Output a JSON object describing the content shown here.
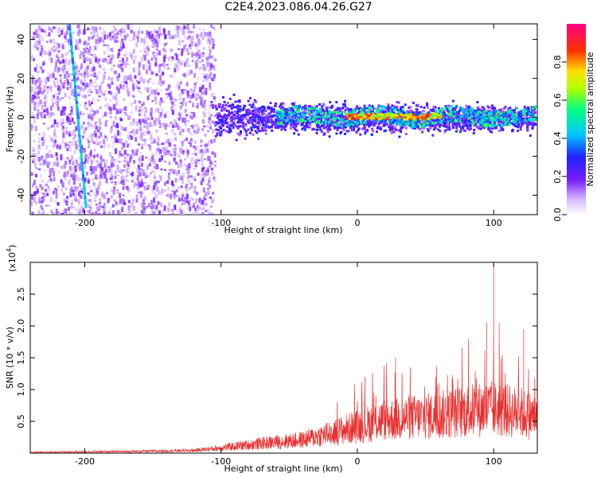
{
  "title": "C2E4.2023.086.04.26.G27",
  "chart_data": [
    {
      "type": "heatmap",
      "xlabel": "Height of straight line (km)",
      "ylabel": "Frequency (Hz)",
      "xlim": [
        -240,
        132
      ],
      "ylim": [
        -50,
        48
      ],
      "x_ticks": [
        -200,
        -100,
        0,
        100
      ],
      "y_ticks": [
        -40,
        -20,
        0,
        20,
        40
      ],
      "colorbar": {
        "label": "Normalized spectral amplitude",
        "range": [
          0.0,
          1.0
        ],
        "ticks": [
          "0.0",
          "0.2",
          "0.4",
          "0.6",
          "0.8"
        ]
      },
      "features": [
        {
          "x_range": [
            -240,
            -105
          ],
          "freq_range": [
            -50,
            48
          ],
          "amplitude": 0.15,
          "description": "broadband scatter"
        },
        {
          "x_range": [
            -105,
            130
          ],
          "freq_range": [
            -15,
            12
          ],
          "amplitude": 0.2,
          "description": "main band"
        },
        {
          "x_range": [
            -60,
            130
          ],
          "freq_range": [
            -3,
            5
          ],
          "amplitude": 0.5,
          "description": "central ridge"
        },
        {
          "x_range": [
            -10,
            60
          ],
          "freq_center": 1,
          "amplitude": 0.9,
          "description": "peak ridge"
        },
        {
          "x_range": [
            -212,
            -200
          ],
          "freq_range": [
            48,
            -45
          ],
          "amplitude": 0.35,
          "description": "diagonal streak"
        }
      ]
    },
    {
      "type": "line",
      "xlabel": "Height of straight line (km)",
      "ylabel": "SNR (10 * v/v)",
      "scale_label": "(x10",
      "scale_exp": "4",
      "scale_close": ")",
      "xlim": [
        -240,
        132
      ],
      "ylim": [
        0,
        3.0
      ],
      "x_ticks": [
        -200,
        -100,
        0,
        100
      ],
      "y_ticks": [
        "0.5",
        "1.0",
        "1.5",
        "2.0",
        "2.5"
      ],
      "color": "#e83030",
      "envelope": [
        {
          "x": -240,
          "y": 0.02
        },
        {
          "x": -160,
          "y": 0.04
        },
        {
          "x": -120,
          "y": 0.06
        },
        {
          "x": -100,
          "y": 0.12
        },
        {
          "x": -70,
          "y": 0.22
        },
        {
          "x": -40,
          "y": 0.3
        },
        {
          "x": -20,
          "y": 0.45
        },
        {
          "x": 0,
          "y": 0.6
        },
        {
          "x": 20,
          "y": 0.75
        },
        {
          "x": 40,
          "y": 0.8
        },
        {
          "x": 60,
          "y": 0.85
        },
        {
          "x": 80,
          "y": 0.95
        },
        {
          "x": 100,
          "y": 1.0
        },
        {
          "x": 120,
          "y": 0.9
        },
        {
          "x": 132,
          "y": 0.8
        }
      ],
      "peaks": [
        {
          "x": -2,
          "y": 0.95
        },
        {
          "x": 28,
          "y": 1.5
        },
        {
          "x": 60,
          "y": 1.1
        },
        {
          "x": 95,
          "y": 2.05
        },
        {
          "x": 100,
          "y": 2.95
        },
        {
          "x": 104,
          "y": 2.05
        },
        {
          "x": 122,
          "y": 1.95
        }
      ]
    }
  ]
}
